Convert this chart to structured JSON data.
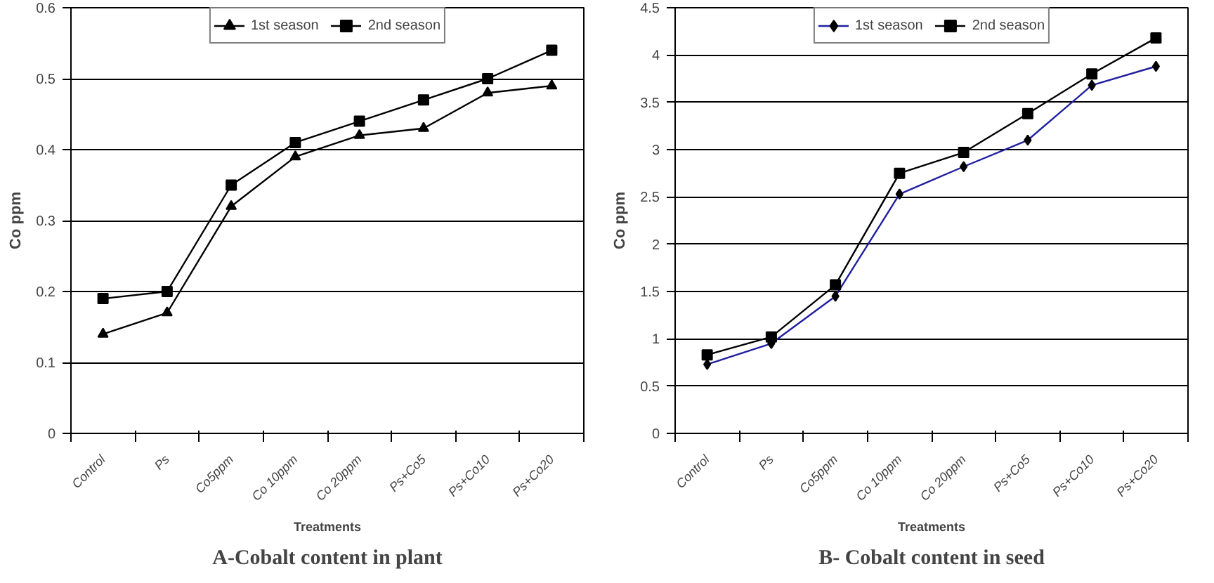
{
  "chart_data": [
    {
      "type": "line",
      "title": "A-Cobalt content in plant",
      "xlabel": "Treatments",
      "ylabel": "Co ppm",
      "categories": [
        "Control",
        "Ps",
        "Co5ppm",
        "Co 10ppm",
        "Co 20ppm",
        "Ps+Co5",
        "Ps+Co10",
        "Ps+Co20"
      ],
      "series": [
        {
          "name": "1st season",
          "color": "#000000",
          "marker": "triangle",
          "values": [
            0.14,
            0.17,
            0.32,
            0.39,
            0.42,
            0.43,
            0.48,
            0.49
          ]
        },
        {
          "name": "2nd season",
          "color": "#000000",
          "marker": "square",
          "values": [
            0.19,
            0.2,
            0.35,
            0.41,
            0.44,
            0.47,
            0.5,
            0.54
          ]
        }
      ],
      "ylim": [
        0,
        0.6
      ],
      "yticks": [
        0,
        0.1,
        0.2,
        0.3,
        0.4,
        0.5,
        0.6
      ],
      "grid": "y",
      "legend": "top"
    },
    {
      "type": "line",
      "title": "B- Cobalt content in seed",
      "xlabel": "Treatments",
      "ylabel": "Co ppm",
      "categories": [
        "Control",
        "Ps",
        "Co5ppm",
        "Co 10ppm",
        "Co 20ppm",
        "Ps+Co5",
        "Ps+Co10",
        "Ps+Co20"
      ],
      "series": [
        {
          "name": "1st season",
          "color": "#1f1f9f",
          "marker": "diamond",
          "values": [
            0.73,
            0.95,
            1.45,
            2.53,
            2.82,
            3.1,
            3.68,
            3.88
          ]
        },
        {
          "name": "2nd season",
          "color": "#000000",
          "marker": "square",
          "values": [
            0.83,
            1.02,
            1.57,
            2.75,
            2.97,
            3.38,
            3.8,
            4.18
          ]
        }
      ],
      "ylim": [
        0,
        4.5
      ],
      "yticks": [
        0,
        0.5,
        1,
        1.5,
        2,
        2.5,
        3,
        3.5,
        4,
        4.5
      ],
      "grid": "y",
      "legend": "top"
    }
  ]
}
